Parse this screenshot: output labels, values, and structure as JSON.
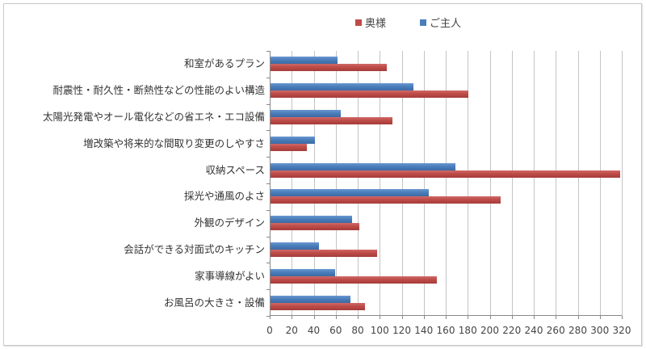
{
  "chart_data": {
    "type": "bar",
    "orientation": "horizontal",
    "title": "",
    "xlabel": "",
    "ylabel": "",
    "xlim": [
      0,
      320
    ],
    "x_ticks": [
      "0",
      "20",
      "40",
      "60",
      "80",
      "100",
      "120",
      "140",
      "160",
      "180",
      "200",
      "220",
      "240",
      "260",
      "280",
      "300",
      "320"
    ],
    "grid": true,
    "legend_position": "top",
    "categories": [
      "和室があるプラン",
      "耐震性・耐久性・断熱性などの性能のよい構造",
      "太陽光発電やオール電化などの省エネ・エコ設備",
      "増改築や将来的な間取り変更のしやすさ",
      "収納スペース",
      "採光や通風のよさ",
      "外観のデザイン",
      "会話ができる対面式のキッチン",
      "家事導線がよい",
      "お風呂の大きさ・設備"
    ],
    "series": [
      {
        "name": "奥様",
        "color": "#be4b48",
        "values": [
          106,
          180,
          111,
          33,
          318,
          209,
          81,
          97,
          151,
          86
        ]
      },
      {
        "name": "ご主人",
        "color": "#4a7ebb",
        "values": [
          61,
          130,
          64,
          40,
          168,
          144,
          74,
          44,
          59,
          73
        ]
      }
    ]
  },
  "legend": [
    {
      "label": "奥様",
      "color": "#be4b48"
    },
    {
      "label": "ご主人",
      "color": "#4a7ebb"
    }
  ]
}
